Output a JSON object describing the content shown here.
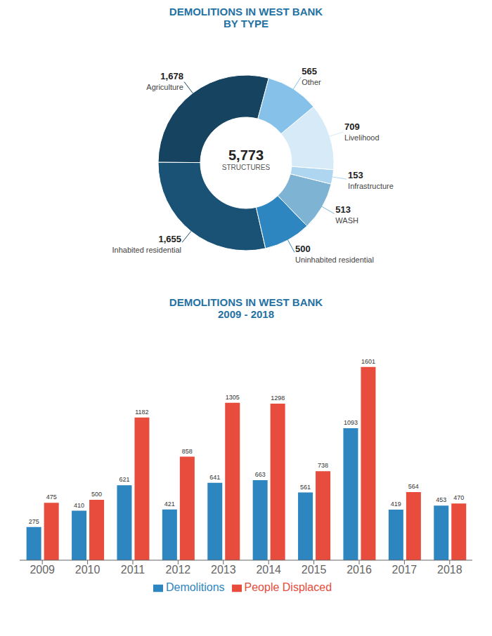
{
  "chart_data": [
    {
      "type": "pie",
      "title": "DEMOLITIONS IN WEST BANK",
      "subtitle": "BY TYPE",
      "categories": [
        "Agriculture",
        "Inhabited residential",
        "Uninhabited residential",
        "WASH",
        "Infrastructure",
        "Livelihood",
        "Other"
      ],
      "values": [
        1678,
        1655,
        500,
        513,
        153,
        709,
        565
      ],
      "value_labels": [
        "1,678",
        "1,655",
        "500",
        "513",
        "153",
        "709",
        "565"
      ],
      "colors": [
        "#154360",
        "#1a5276",
        "#2e86c1",
        "#7fb3d3",
        "#aed6f1",
        "#d6eaf8",
        "#85c1e9"
      ],
      "data_labels": true,
      "annotations": [
        "5,773",
        "STRUCTURES"
      ]
    },
    {
      "type": "bar",
      "title": "DEMOLITIONS IN WEST BANK",
      "subtitle": "2009 - 2018",
      "categories": [
        "2009",
        "2010",
        "2011",
        "2012",
        "2013",
        "2014",
        "2015",
        "2016",
        "2017",
        "2018"
      ],
      "series": [
        {
          "name": "Demolitions",
          "color": "#2e86c1",
          "values": [
            275,
            410,
            621,
            421,
            641,
            663,
            561,
            1093,
            419,
            453
          ]
        },
        {
          "name": "People Displaced",
          "color": "#e74c3c",
          "values": [
            475,
            500,
            1182,
            858,
            1305,
            1298,
            738,
            1601,
            564,
            470
          ]
        }
      ],
      "ylim": [
        0,
        1850
      ],
      "tick_labels": "x",
      "grid": false,
      "data_labels": true,
      "legend": "bottom"
    }
  ]
}
